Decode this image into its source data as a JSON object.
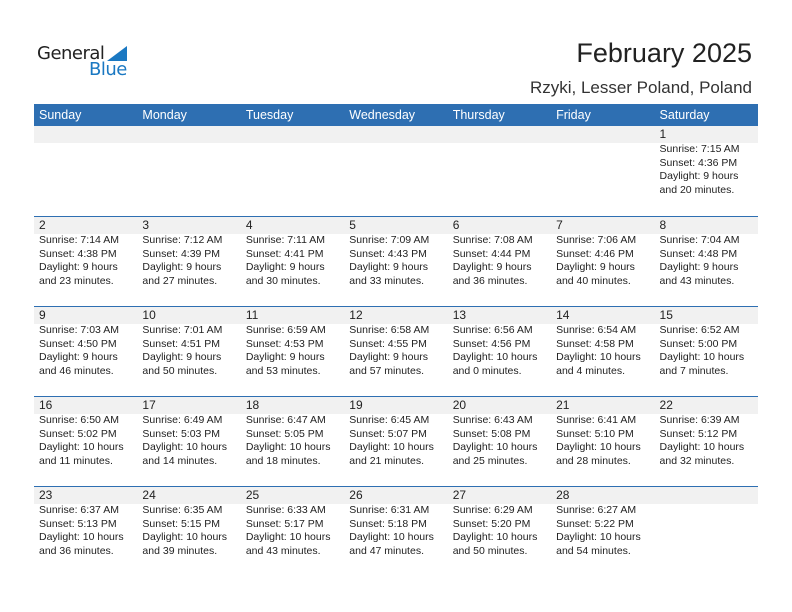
{
  "logo": {
    "general": "General",
    "blue": "Blue"
  },
  "title": "February 2025",
  "location": "Rzyki, Lesser Poland, Poland",
  "colors": {
    "header": "#2e6fb2",
    "logo_blue": "#1a78c2"
  },
  "days": [
    "Sunday",
    "Monday",
    "Tuesday",
    "Wednesday",
    "Thursday",
    "Friday",
    "Saturday"
  ],
  "weeks": [
    [
      null,
      null,
      null,
      null,
      null,
      null,
      {
        "d": "1",
        "rise": "Sunrise: 7:15 AM",
        "set": "Sunset: 4:36 PM",
        "dl1": "Daylight: 9 hours",
        "dl2": "and 20 minutes."
      }
    ],
    [
      {
        "d": "2",
        "rise": "Sunrise: 7:14 AM",
        "set": "Sunset: 4:38 PM",
        "dl1": "Daylight: 9 hours",
        "dl2": "and 23 minutes."
      },
      {
        "d": "3",
        "rise": "Sunrise: 7:12 AM",
        "set": "Sunset: 4:39 PM",
        "dl1": "Daylight: 9 hours",
        "dl2": "and 27 minutes."
      },
      {
        "d": "4",
        "rise": "Sunrise: 7:11 AM",
        "set": "Sunset: 4:41 PM",
        "dl1": "Daylight: 9 hours",
        "dl2": "and 30 minutes."
      },
      {
        "d": "5",
        "rise": "Sunrise: 7:09 AM",
        "set": "Sunset: 4:43 PM",
        "dl1": "Daylight: 9 hours",
        "dl2": "and 33 minutes."
      },
      {
        "d": "6",
        "rise": "Sunrise: 7:08 AM",
        "set": "Sunset: 4:44 PM",
        "dl1": "Daylight: 9 hours",
        "dl2": "and 36 minutes."
      },
      {
        "d": "7",
        "rise": "Sunrise: 7:06 AM",
        "set": "Sunset: 4:46 PM",
        "dl1": "Daylight: 9 hours",
        "dl2": "and 40 minutes."
      },
      {
        "d": "8",
        "rise": "Sunrise: 7:04 AM",
        "set": "Sunset: 4:48 PM",
        "dl1": "Daylight: 9 hours",
        "dl2": "and 43 minutes."
      }
    ],
    [
      {
        "d": "9",
        "rise": "Sunrise: 7:03 AM",
        "set": "Sunset: 4:50 PM",
        "dl1": "Daylight: 9 hours",
        "dl2": "and 46 minutes."
      },
      {
        "d": "10",
        "rise": "Sunrise: 7:01 AM",
        "set": "Sunset: 4:51 PM",
        "dl1": "Daylight: 9 hours",
        "dl2": "and 50 minutes."
      },
      {
        "d": "11",
        "rise": "Sunrise: 6:59 AM",
        "set": "Sunset: 4:53 PM",
        "dl1": "Daylight: 9 hours",
        "dl2": "and 53 minutes."
      },
      {
        "d": "12",
        "rise": "Sunrise: 6:58 AM",
        "set": "Sunset: 4:55 PM",
        "dl1": "Daylight: 9 hours",
        "dl2": "and 57 minutes."
      },
      {
        "d": "13",
        "rise": "Sunrise: 6:56 AM",
        "set": "Sunset: 4:56 PM",
        "dl1": "Daylight: 10 hours",
        "dl2": "and 0 minutes."
      },
      {
        "d": "14",
        "rise": "Sunrise: 6:54 AM",
        "set": "Sunset: 4:58 PM",
        "dl1": "Daylight: 10 hours",
        "dl2": "and 4 minutes."
      },
      {
        "d": "15",
        "rise": "Sunrise: 6:52 AM",
        "set": "Sunset: 5:00 PM",
        "dl1": "Daylight: 10 hours",
        "dl2": "and 7 minutes."
      }
    ],
    [
      {
        "d": "16",
        "rise": "Sunrise: 6:50 AM",
        "set": "Sunset: 5:02 PM",
        "dl1": "Daylight: 10 hours",
        "dl2": "and 11 minutes."
      },
      {
        "d": "17",
        "rise": "Sunrise: 6:49 AM",
        "set": "Sunset: 5:03 PM",
        "dl1": "Daylight: 10 hours",
        "dl2": "and 14 minutes."
      },
      {
        "d": "18",
        "rise": "Sunrise: 6:47 AM",
        "set": "Sunset: 5:05 PM",
        "dl1": "Daylight: 10 hours",
        "dl2": "and 18 minutes."
      },
      {
        "d": "19",
        "rise": "Sunrise: 6:45 AM",
        "set": "Sunset: 5:07 PM",
        "dl1": "Daylight: 10 hours",
        "dl2": "and 21 minutes."
      },
      {
        "d": "20",
        "rise": "Sunrise: 6:43 AM",
        "set": "Sunset: 5:08 PM",
        "dl1": "Daylight: 10 hours",
        "dl2": "and 25 minutes."
      },
      {
        "d": "21",
        "rise": "Sunrise: 6:41 AM",
        "set": "Sunset: 5:10 PM",
        "dl1": "Daylight: 10 hours",
        "dl2": "and 28 minutes."
      },
      {
        "d": "22",
        "rise": "Sunrise: 6:39 AM",
        "set": "Sunset: 5:12 PM",
        "dl1": "Daylight: 10 hours",
        "dl2": "and 32 minutes."
      }
    ],
    [
      {
        "d": "23",
        "rise": "Sunrise: 6:37 AM",
        "set": "Sunset: 5:13 PM",
        "dl1": "Daylight: 10 hours",
        "dl2": "and 36 minutes."
      },
      {
        "d": "24",
        "rise": "Sunrise: 6:35 AM",
        "set": "Sunset: 5:15 PM",
        "dl1": "Daylight: 10 hours",
        "dl2": "and 39 minutes."
      },
      {
        "d": "25",
        "rise": "Sunrise: 6:33 AM",
        "set": "Sunset: 5:17 PM",
        "dl1": "Daylight: 10 hours",
        "dl2": "and 43 minutes."
      },
      {
        "d": "26",
        "rise": "Sunrise: 6:31 AM",
        "set": "Sunset: 5:18 PM",
        "dl1": "Daylight: 10 hours",
        "dl2": "and 47 minutes."
      },
      {
        "d": "27",
        "rise": "Sunrise: 6:29 AM",
        "set": "Sunset: 5:20 PM",
        "dl1": "Daylight: 10 hours",
        "dl2": "and 50 minutes."
      },
      {
        "d": "28",
        "rise": "Sunrise: 6:27 AM",
        "set": "Sunset: 5:22 PM",
        "dl1": "Daylight: 10 hours",
        "dl2": "and 54 minutes."
      },
      null
    ]
  ]
}
